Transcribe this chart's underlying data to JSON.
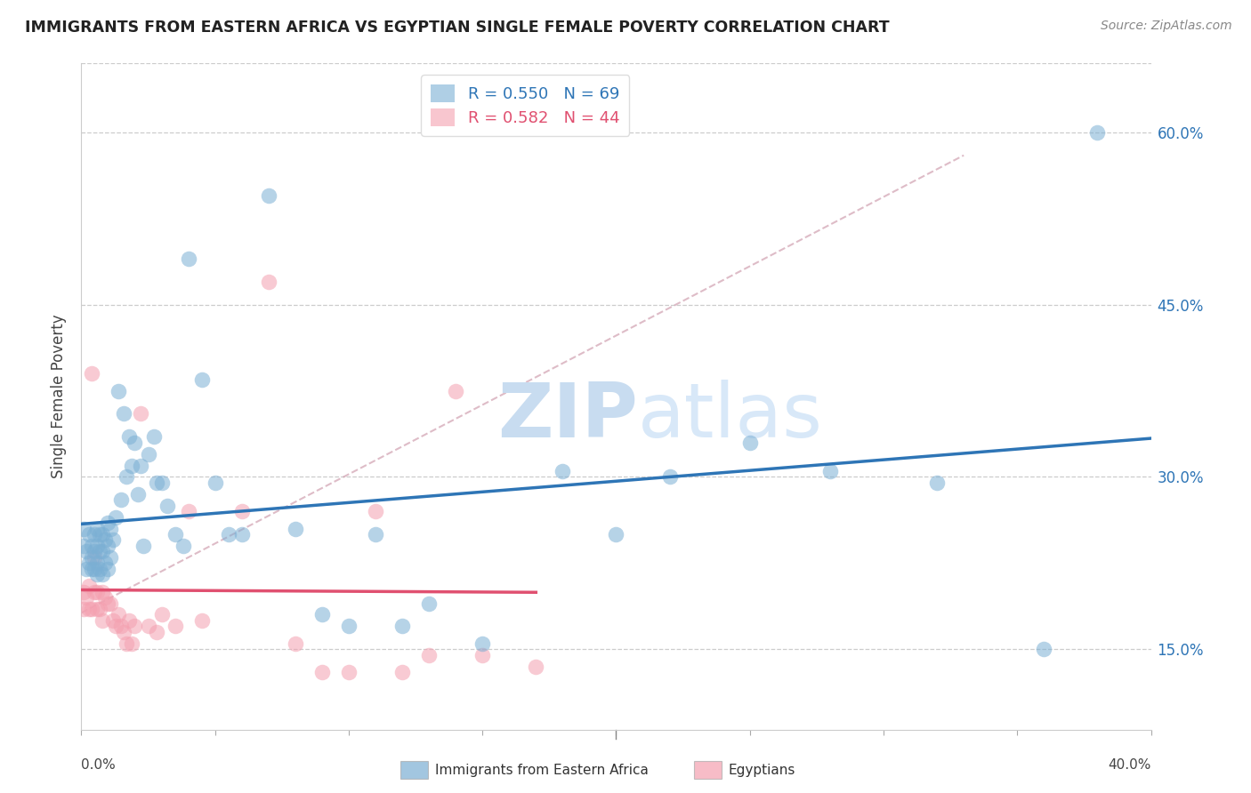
{
  "title": "IMMIGRANTS FROM EASTERN AFRICA VS EGYPTIAN SINGLE FEMALE POVERTY CORRELATION CHART",
  "source": "Source: ZipAtlas.com",
  "ylabel": "Single Female Poverty",
  "ytick_vals": [
    0.15,
    0.3,
    0.45,
    0.6
  ],
  "ytick_labels": [
    "15.0%",
    "30.0%",
    "45.0%",
    "60.0%"
  ],
  "xlim": [
    0.0,
    0.4
  ],
  "ylim": [
    0.08,
    0.66
  ],
  "legend_r1_r": "R = 0.550",
  "legend_r1_n": "N = 69",
  "legend_r2_r": "R = 0.582",
  "legend_r2_n": "N = 44",
  "blue_color": "#7BAFD4",
  "pink_color": "#F4A0B0",
  "blue_line_color": "#2E75B6",
  "pink_line_color": "#E05070",
  "dash_color": "#D0A0B0",
  "watermark_zip": "ZIP",
  "watermark_atlas": "atlas",
  "blue_scatter_x": [
    0.001,
    0.001,
    0.002,
    0.002,
    0.003,
    0.003,
    0.004,
    0.004,
    0.004,
    0.005,
    0.005,
    0.005,
    0.006,
    0.006,
    0.006,
    0.006,
    0.007,
    0.007,
    0.007,
    0.008,
    0.008,
    0.008,
    0.009,
    0.009,
    0.01,
    0.01,
    0.01,
    0.011,
    0.011,
    0.012,
    0.013,
    0.014,
    0.015,
    0.016,
    0.017,
    0.018,
    0.019,
    0.02,
    0.021,
    0.022,
    0.023,
    0.025,
    0.027,
    0.028,
    0.03,
    0.032,
    0.035,
    0.038,
    0.04,
    0.045,
    0.05,
    0.055,
    0.06,
    0.07,
    0.08,
    0.09,
    0.1,
    0.11,
    0.12,
    0.13,
    0.15,
    0.18,
    0.2,
    0.22,
    0.25,
    0.28,
    0.32,
    0.36,
    0.38
  ],
  "blue_scatter_y": [
    0.255,
    0.24,
    0.235,
    0.22,
    0.25,
    0.225,
    0.24,
    0.23,
    0.22,
    0.25,
    0.235,
    0.22,
    0.255,
    0.24,
    0.225,
    0.215,
    0.25,
    0.235,
    0.22,
    0.25,
    0.235,
    0.215,
    0.245,
    0.225,
    0.26,
    0.24,
    0.22,
    0.255,
    0.23,
    0.245,
    0.265,
    0.375,
    0.28,
    0.355,
    0.3,
    0.335,
    0.31,
    0.33,
    0.285,
    0.31,
    0.24,
    0.32,
    0.335,
    0.295,
    0.295,
    0.275,
    0.25,
    0.24,
    0.49,
    0.385,
    0.295,
    0.25,
    0.25,
    0.545,
    0.255,
    0.18,
    0.17,
    0.25,
    0.17,
    0.19,
    0.155,
    0.305,
    0.25,
    0.3,
    0.33,
    0.305,
    0.295,
    0.15,
    0.6
  ],
  "pink_scatter_x": [
    0.001,
    0.001,
    0.002,
    0.003,
    0.003,
    0.004,
    0.004,
    0.005,
    0.005,
    0.006,
    0.006,
    0.007,
    0.008,
    0.008,
    0.009,
    0.01,
    0.011,
    0.012,
    0.013,
    0.014,
    0.015,
    0.016,
    0.017,
    0.018,
    0.019,
    0.02,
    0.022,
    0.025,
    0.028,
    0.03,
    0.035,
    0.04,
    0.045,
    0.06,
    0.07,
    0.08,
    0.09,
    0.1,
    0.11,
    0.12,
    0.13,
    0.14,
    0.15,
    0.17
  ],
  "pink_scatter_y": [
    0.2,
    0.185,
    0.195,
    0.205,
    0.185,
    0.39,
    0.185,
    0.23,
    0.2,
    0.2,
    0.185,
    0.185,
    0.2,
    0.175,
    0.195,
    0.19,
    0.19,
    0.175,
    0.17,
    0.18,
    0.17,
    0.165,
    0.155,
    0.175,
    0.155,
    0.17,
    0.355,
    0.17,
    0.165,
    0.18,
    0.17,
    0.27,
    0.175,
    0.27,
    0.47,
    0.155,
    0.13,
    0.13,
    0.27,
    0.13,
    0.145,
    0.375,
    0.145,
    0.135
  ]
}
